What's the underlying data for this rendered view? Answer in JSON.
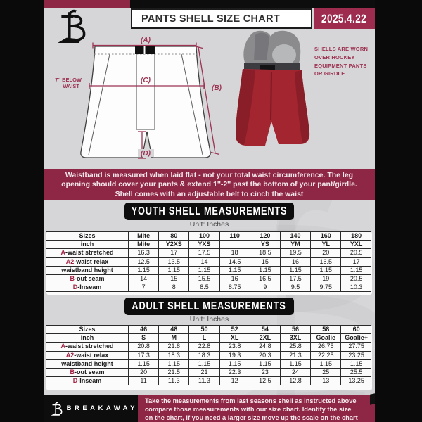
{
  "header": {
    "title": "PANTS SHELL SIZE CHART",
    "date": "2025.4.22"
  },
  "diagram": {
    "label_a": "(A)",
    "label_b": "(B)",
    "label_c": "(C)",
    "label_d": "(D)",
    "waist_note_line1": "7'' BELOW",
    "waist_note_line2": "WAIST",
    "photo_note_lines": [
      "SHELLS ARE WORN",
      "OVER HOCKEY",
      "EQUIPMENT PANTS",
      "OR GIRDLE"
    ]
  },
  "info_band": {
    "lines": [
      "Waistband is measured when laid flat - not your total waist circumference. The leg",
      "opening should cover your pants & extend 1''-2'' past the bottom of your pant/girdle.",
      "Shell comes with an adjustable belt to cinch the waist"
    ]
  },
  "youth": {
    "banner": "YOUTH SHELL MEASUREMENTS",
    "unit": "Unit: Inches",
    "table": {
      "rows": [
        {
          "prefix": "",
          "label": "Sizes",
          "header": true,
          "values": [
            "Mite",
            "80",
            "100",
            "110",
            "120",
            "140",
            "160",
            "180"
          ]
        },
        {
          "prefix": "",
          "label": "inch",
          "header": true,
          "values": [
            "Mite",
            "Y2XS",
            "YXS",
            "",
            "YS",
            "YM",
            "YL",
            "YXL"
          ]
        },
        {
          "prefix": "A",
          "label": "-waist stretched",
          "header": false,
          "values": [
            "16.3",
            "17",
            "17.5",
            "18",
            "18.5",
            "19.5",
            "20",
            "20.5"
          ]
        },
        {
          "prefix": "A2",
          "label": "-waist relax",
          "header": false,
          "values": [
            "12.5",
            "13.5",
            "14",
            "14.5",
            "15",
            "16",
            "16.5",
            "17"
          ]
        },
        {
          "prefix": "",
          "label": "waistband height",
          "header": false,
          "values": [
            "1.15",
            "1.15",
            "1.15",
            "1.15",
            "1.15",
            "1.15",
            "1.15",
            "1.15"
          ]
        },
        {
          "prefix": "B",
          "label": "-out seam",
          "header": false,
          "values": [
            "14",
            "15",
            "15.5",
            "16",
            "16.5",
            "17.5",
            "19",
            "20.5"
          ]
        },
        {
          "prefix": "D",
          "label": "-Inseam",
          "header": false,
          "values": [
            "7",
            "8",
            "8.5",
            "8.75",
            "9",
            "9.5",
            "9.75",
            "10.3"
          ]
        }
      ]
    }
  },
  "adult": {
    "banner": "ADULT SHELL MEASUREMENTS",
    "unit": "Unit: Inches",
    "table": {
      "rows": [
        {
          "prefix": "",
          "label": "Sizes",
          "header": true,
          "values": [
            "46",
            "48",
            "50",
            "52",
            "54",
            "56",
            "58",
            "60"
          ]
        },
        {
          "prefix": "",
          "label": "inch",
          "header": true,
          "values": [
            "S",
            "M",
            "L",
            "XL",
            "2XL",
            "3XL",
            "Goalie",
            "Goalie+"
          ]
        },
        {
          "prefix": "A",
          "label": "-waist stretched",
          "header": false,
          "values": [
            "20.8",
            "21.8",
            "22.8",
            "23.8",
            "24.8",
            "25.8",
            "26.75",
            "27.75"
          ]
        },
        {
          "prefix": "A2",
          "label": "-waist relax",
          "header": false,
          "values": [
            "17.3",
            "18.3",
            "18.3",
            "19.3",
            "20.3",
            "21.3",
            "22.25",
            "23.25"
          ]
        },
        {
          "prefix": "",
          "label": "waistband height",
          "header": false,
          "values": [
            "1.15",
            "1.15",
            "1.15",
            "1.15",
            "1.15",
            "1.15",
            "1.15",
            "1.15"
          ]
        },
        {
          "prefix": "B",
          "label": "-out seam",
          "header": false,
          "values": [
            "20",
            "21.5",
            "21",
            "22.3",
            "23",
            "24",
            "25",
            "25.5"
          ]
        },
        {
          "prefix": "D",
          "label": "-Inseam",
          "header": false,
          "values": [
            "11",
            "11.3",
            "11.3",
            "12",
            "12.5",
            "12.8",
            "13",
            "13.25"
          ]
        }
      ]
    }
  },
  "footer": {
    "brand": "BREAKAWAY",
    "lines": [
      "Take the measurements from last seasons shell as instructed above",
      "compare those measurements  with our size chart. Identify the size",
      "on the chart, if you need a larger size move up the scale on the chart"
    ]
  },
  "colors": {
    "maroon": "#8e2745",
    "date_box": "#9d2c4e",
    "measure_line": "#9c3352",
    "prefix_red": "#a42142",
    "background": "#d6d5d7",
    "shell_red": "#a2252f"
  }
}
